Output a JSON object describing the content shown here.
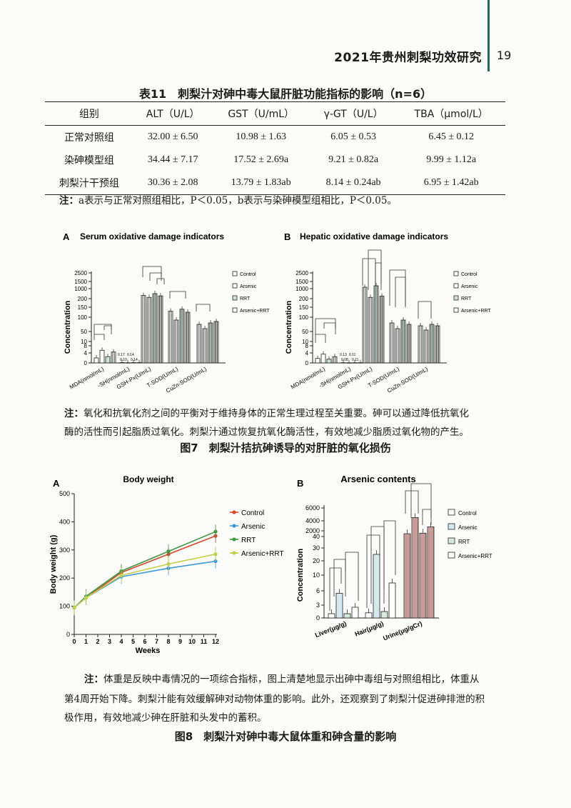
{
  "header": {
    "title": "2021年贵州刺梨功效研究",
    "page": "19"
  },
  "table11": {
    "title": "表11　刺梨汁对砷中毒大鼠肝脏功能指标的影响（n=6）",
    "columns": [
      "组别",
      "ALT（U/L）",
      "GST（U/mL）",
      "γ-GT（U/L）",
      "TBA（μmol/L）"
    ],
    "rows": [
      [
        "正常对照组",
        "32.00 ± 6.50",
        "10.98 ± 1.63",
        "6.05 ± 0.53",
        "6.45 ± 0.12"
      ],
      [
        "染砷模型组",
        "34.44 ± 7.17",
        "17.52 ± 2.69a",
        "9.21 ± 0.82a",
        "9.99 ± 1.12a"
      ],
      [
        "刺梨汁干预组",
        "30.36 ± 2.08",
        "13.79 ± 1.83ab",
        "8.14 ± 0.24ab",
        "6.95 ± 1.42ab"
      ]
    ],
    "note_label": "注：",
    "note": "a表示与正常对照组相比，P＜0.05，b表示与染砷模型组相比，P＜0.05。"
  },
  "fig7": {
    "panelA_letter": "A",
    "panelA_title": "Serum oxidative damage indicators",
    "panelB_letter": "B",
    "panelB_title": "Hepatic oxidative damage indicators",
    "ylabel": "Concentration",
    "yticks": [
      "2500",
      "1500",
      "1000",
      "200",
      "150",
      "100",
      "50",
      "10",
      "8",
      "4",
      "0"
    ],
    "categories": [
      "MDA(nmol/mL)",
      "-SH(nmol/mL)",
      "GSH-Px(U/mL)",
      "T-SOD(U/mL)",
      "CuZn-SOD(U/mL)"
    ],
    "legend": [
      "Control",
      "Arsenic",
      "RRT",
      "Arsenic+RRT"
    ],
    "labelsA": [
      "0.17",
      "0.14",
      "0.10",
      "0.14"
    ],
    "labelsB": [
      "0.13",
      "0.11",
      "0.08",
      "0.11"
    ],
    "note_label": "注：",
    "note_line1": "氧化和抗氧化剂之间的平衡对于维持身体的正常生理过程至关重要。砷可以通过降低抗氧化",
    "note_line2": "酶的活性而引起脂质过氧化。刺梨汁通过恢复抗氧化酶活性，有效地减少脂质过氧化物的产生。",
    "caption": "图7　刺梨汁拮抗砷诱导的对肝脏的氧化损伤"
  },
  "fig8": {
    "panelA_letter": "A",
    "panelA_title": "Body weight",
    "panelB_letter": "B",
    "panelB_title": "Arsenic contents",
    "ylabelA": "Body weight (g)",
    "xlabelA": "Weeks",
    "yticksA": [
      "0",
      "100",
      "200",
      "300",
      "400",
      "500"
    ],
    "xticksA": [
      "0",
      "1",
      "2",
      "3",
      "4",
      "5",
      "6",
      "7",
      "8",
      "9",
      "10",
      "11",
      "12"
    ],
    "ylabelB": "Concentration",
    "yticksB": [
      "6000",
      "4000",
      "2000",
      "40",
      "30",
      "20",
      "10",
      "6",
      "3",
      "0"
    ],
    "categoriesB": [
      "Liver(μg/g)",
      "Hair(μg/g)",
      "Urine(μg/gCr)"
    ],
    "legend": [
      "Control",
      "Arsenic",
      "RRT",
      "Arsenic+RRT"
    ],
    "note_label": "注：",
    "note_line1": "体重是反映中毒情况的一项综合指标，图上清楚地显示出砷中毒组与对照组相比，体重从",
    "note_line2": "第4周开始下降。刺梨汁能有效缓解砷对动物体重的影响。此外，还观察到了刺梨汁促进砷排泄的积",
    "note_line3": "极作用，有效地减少砷在肝脏和头发中的蓄积。",
    "caption": "图8　刺梨汁对砷中毒大鼠体重和砷含量的影响"
  },
  "chart_data": [
    {
      "type": "bar",
      "title": "Serum oxidative damage indicators",
      "ylabel": "Concentration",
      "categories": [
        "MDA(nmol/mL)",
        "-SH(nmol/mL)",
        "GSH-Px(U/mL)",
        "T-SOD(U/mL)",
        "CuZn-SOD(U/mL)"
      ],
      "series": [
        {
          "name": "Control",
          "values": [
            2.0,
            0.17,
            450,
            130,
            75
          ]
        },
        {
          "name": "Arsenic",
          "values": [
            5.5,
            0.1,
            300,
            90,
            60
          ]
        },
        {
          "name": "RRT",
          "values": [
            2.5,
            0.14,
            600,
            140,
            80
          ]
        },
        {
          "name": "Arsenic+RRT",
          "values": [
            4.5,
            0.14,
            420,
            125,
            85
          ]
        }
      ]
    },
    {
      "type": "bar",
      "title": "Hepatic oxidative damage indicators",
      "ylabel": "Concentration",
      "categories": [
        "MDA(nmol/mL)",
        "-SH(nmol/mL)",
        "GSH-Px(U/mL)",
        "T-SOD(U/mL)",
        "CuZn-SOD(U/mL)"
      ],
      "series": [
        {
          "name": "Control",
          "values": [
            1.8,
            0.13,
            1100,
            80,
            70
          ]
        },
        {
          "name": "Arsenic",
          "values": [
            3.5,
            0.08,
            300,
            60,
            55
          ]
        },
        {
          "name": "RRT",
          "values": [
            1.5,
            0.11,
            1200,
            90,
            75
          ]
        },
        {
          "name": "Arsenic+RRT",
          "values": [
            2.5,
            0.11,
            400,
            75,
            70
          ]
        }
      ]
    },
    {
      "type": "line",
      "title": "Body weight",
      "xlabel": "Weeks",
      "ylabel": "Body weight (g)",
      "x": [
        0,
        1,
        4,
        8,
        12
      ],
      "ylim": [
        0,
        500
      ],
      "xlim": [
        0,
        12
      ],
      "series": [
        {
          "name": "Control",
          "values": [
            95,
            130,
            220,
            285,
            350
          ],
          "color": "#d9452b"
        },
        {
          "name": "Arsenic",
          "values": [
            95,
            130,
            205,
            235,
            260
          ],
          "color": "#3c9bd6"
        },
        {
          "name": "RRT",
          "values": [
            95,
            135,
            225,
            295,
            365
          ],
          "color": "#3d9a3d"
        },
        {
          "name": "Arsenic+RRT",
          "values": [
            95,
            130,
            210,
            250,
            285
          ],
          "color": "#c4cf4a"
        }
      ]
    },
    {
      "type": "bar",
      "title": "Arsenic contents",
      "ylabel": "Concentration",
      "categories": [
        "Liver(μg/g)",
        "Hair(μg/g)",
        "Urine(μg/gCr)"
      ],
      "series": [
        {
          "name": "Control",
          "values": [
            1.0,
            1.2,
            1000
          ]
        },
        {
          "name": "Arsenic",
          "values": [
            5.5,
            25,
            4500
          ]
        },
        {
          "name": "RRT",
          "values": [
            1.0,
            1.5,
            1200
          ]
        },
        {
          "name": "Arsenic+RRT",
          "values": [
            2.5,
            8,
            2800
          ]
        }
      ]
    }
  ]
}
